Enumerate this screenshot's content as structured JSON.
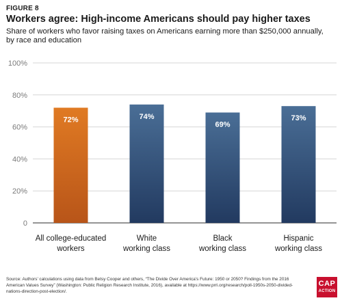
{
  "figure_label": "FIGURE 8",
  "title": "Workers agree: High-income Americans should pay higher taxes",
  "subtitle": "Share of workers who favor raising taxes on Americans earning more than $250,000 annually, by race and education",
  "source": "Source: Authors’ calculations using data from Betsy Cooper and others, “The Divide Over America’s Future: 1950 or 2050? Findings from the 2016 American Values Survey” (Washington: Public Religion Research Institute, 2016), available at https://www.prri.org/research/poll-1950s-2050-divided-nations-direction-post-election/.",
  "logo": {
    "line1": "CAP",
    "line2": "ACTION"
  },
  "colors": {
    "orange_top": "#e07a23",
    "orange_bottom": "#b85519",
    "blue_top": "#4a6e96",
    "blue_bottom": "#223a60",
    "grid": "#d6d6d6",
    "axis": "#555555",
    "tick_text": "#7a7a7a",
    "label_text": "#1a1a1a"
  },
  "chart_data": {
    "type": "bar",
    "categories": [
      [
        "All college-educated",
        "workers"
      ],
      [
        "White",
        "working class"
      ],
      [
        "Black",
        "working class"
      ],
      [
        "Hispanic",
        "working class"
      ]
    ],
    "values": [
      72,
      74,
      69,
      73
    ],
    "data_labels": [
      "72%",
      "74%",
      "69%",
      "73%"
    ],
    "bar_colors": [
      "orange",
      "blue",
      "blue",
      "blue"
    ],
    "ylim": [
      0,
      100
    ],
    "yticks": [
      0,
      20,
      40,
      60,
      80,
      100
    ],
    "ytick_labels": [
      "0",
      "20%",
      "40%",
      "60%",
      "80%",
      "100%"
    ],
    "grid": true
  }
}
